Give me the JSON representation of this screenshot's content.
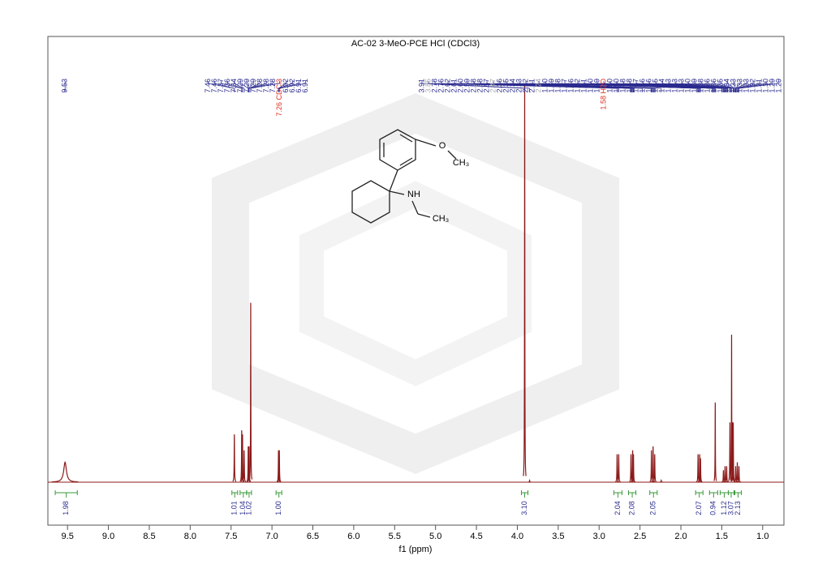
{
  "chart_data": {
    "type": "nmr",
    "title": "AC-02 3-MeO-PCE HCl (CDCl3)",
    "xlabel": "f1 (ppm)",
    "xlim": [
      9.74,
      0.74
    ],
    "xticks": [
      9.5,
      {
        "value": 9,
        "label": "9.0"
      },
      8.5,
      {
        "value": 8,
        "label": "8.0"
      },
      7.5,
      {
        "value": 7,
        "label": "7.0"
      },
      6.5,
      {
        "value": 6,
        "label": "6.0"
      },
      5.5,
      {
        "value": 5,
        "label": "5.0"
      },
      4.5,
      {
        "value": 4,
        "label": "4.0"
      },
      3.5,
      {
        "value": 3,
        "label": "3.0"
      },
      2.5,
      {
        "value": 2,
        "label": "2.0"
      },
      1.5,
      {
        "value": 1,
        "label": "1.0"
      }
    ],
    "ylim": [
      0,
      1
    ],
    "spectrum_color": "#8b1a1a",
    "label_color": "#2b2b8f",
    "integral_color": "#3a9a3a",
    "peak_label_groups": [
      [
        9.53
      ],
      [
        7.46,
        7.46,
        7.37,
        7.36,
        7.34,
        7.29,
        7.29,
        7.29,
        7.28,
        7.28,
        7.28,
        {
          "value": 7.26,
          "label": "7.26 CDCl3",
          "color": "#e03020"
        },
        6.92,
        6.92,
        6.91,
        6.91
      ],
      [
        3.91,
        {
          "value": 3.85,
          "label": "3.85",
          "color": "#aaaaaa"
        },
        2.78,
        2.76,
        2.62,
        2.61,
        {
          "value": 2.6,
          "label": "2.60"
        },
        2.59,
        2.58,
        2.58,
        2.57,
        {
          "value": 2.47,
          "label": "2.47",
          "color": "#aaaaaa"
        },
        2.36,
        2.35,
        2.34,
        2.33,
        2.32,
        2.31,
        {
          "value": 2.24,
          "label": "2.24",
          "color": "#aaaaaa"
        },
        {
          "value": 1.8,
          "label": "1.80"
        },
        1.79,
        1.78,
        1.77,
        1.76,
        1.62,
        1.61,
        {
          "value": 1.6,
          "label": "1.60"
        },
        1.59,
        {
          "value": 1.58,
          "label": "1.58 H2O",
          "color": "#e03020"
        },
        {
          "value": 1.5,
          "label": "1.50"
        },
        {
          "value": 1.5,
          "label": "1.50"
        },
        1.48,
        1.48,
        1.47,
        1.46,
        1.46,
        1.45,
        1.44,
        1.43,
        1.43,
        1.43,
        {
          "value": 1.4,
          "label": "1.40"
        },
        1.39,
        1.38,
        1.36,
        1.36,
        1.35,
        1.34,
        1.33,
        1.33,
        1.33,
        1.32,
        1.31,
        {
          "value": 1.3,
          "label": "1.30"
        },
        1.29,
        1.29
      ]
    ],
    "signals": {
      "x": [
        9.53,
        7.46,
        7.37,
        7.36,
        7.34,
        7.29,
        7.28,
        7.26,
        6.92,
        6.91,
        3.91,
        3.85,
        2.78,
        2.76,
        2.61,
        2.59,
        2.58,
        2.36,
        2.34,
        2.32,
        2.24,
        1.79,
        1.77,
        1.76,
        1.58,
        1.48,
        1.46,
        1.44,
        1.4,
        1.38,
        1.37,
        1.36,
        1.33,
        1.31,
        1.29
      ],
      "y": [
        0.05,
        0.12,
        0.13,
        0.12,
        0.08,
        0.09,
        0.09,
        0.45,
        0.08,
        0.08,
        1.0,
        0.005,
        0.07,
        0.07,
        0.07,
        0.08,
        0.07,
        0.08,
        0.09,
        0.07,
        0.005,
        0.07,
        0.07,
        0.06,
        0.2,
        0.03,
        0.04,
        0.04,
        0.15,
        0.37,
        0.15,
        0.15,
        0.04,
        0.05,
        0.04
      ],
      "widths": [
        0.04,
        0.005,
        0.005,
        0.005,
        0.005,
        0.005,
        0.005,
        0.004,
        0.005,
        0.005,
        0.004,
        0.005,
        0.005,
        0.005,
        0.005,
        0.005,
        0.005,
        0.005,
        0.005,
        0.005,
        0.005,
        0.005,
        0.005,
        0.005,
        0.004,
        0.005,
        0.005,
        0.005,
        0.005,
        0.004,
        0.005,
        0.005,
        0.005,
        0.005,
        0.005
      ]
    },
    "integrals": {
      "from": [
        9.65,
        7.49,
        7.39,
        7.31,
        6.95,
        3.95,
        2.82,
        2.64,
        2.38,
        1.82,
        1.65,
        1.52,
        1.42,
        1.34
      ],
      "to": [
        9.38,
        7.42,
        7.31,
        7.25,
        6.88,
        3.87,
        2.72,
        2.55,
        2.29,
        1.73,
        1.55,
        1.42,
        1.35,
        1.26
      ],
      "values": [
        1.98,
        1.01,
        1.04,
        1.02,
        1.0,
        3.1,
        2.04,
        2.08,
        2.05,
        2.07,
        0.94,
        1.12,
        3.07,
        2.13
      ],
      "value_labels": [
        "1.98",
        "1.01",
        "1.04",
        "1.02",
        "1.00",
        "3.10",
        "2.04",
        "2.08",
        "2.05",
        "2.07",
        "0.94",
        "1.12",
        "3.07",
        "2.13"
      ]
    }
  },
  "structure": {
    "atoms": [
      "O",
      "CH₃",
      "NH",
      "CH₃"
    ]
  }
}
